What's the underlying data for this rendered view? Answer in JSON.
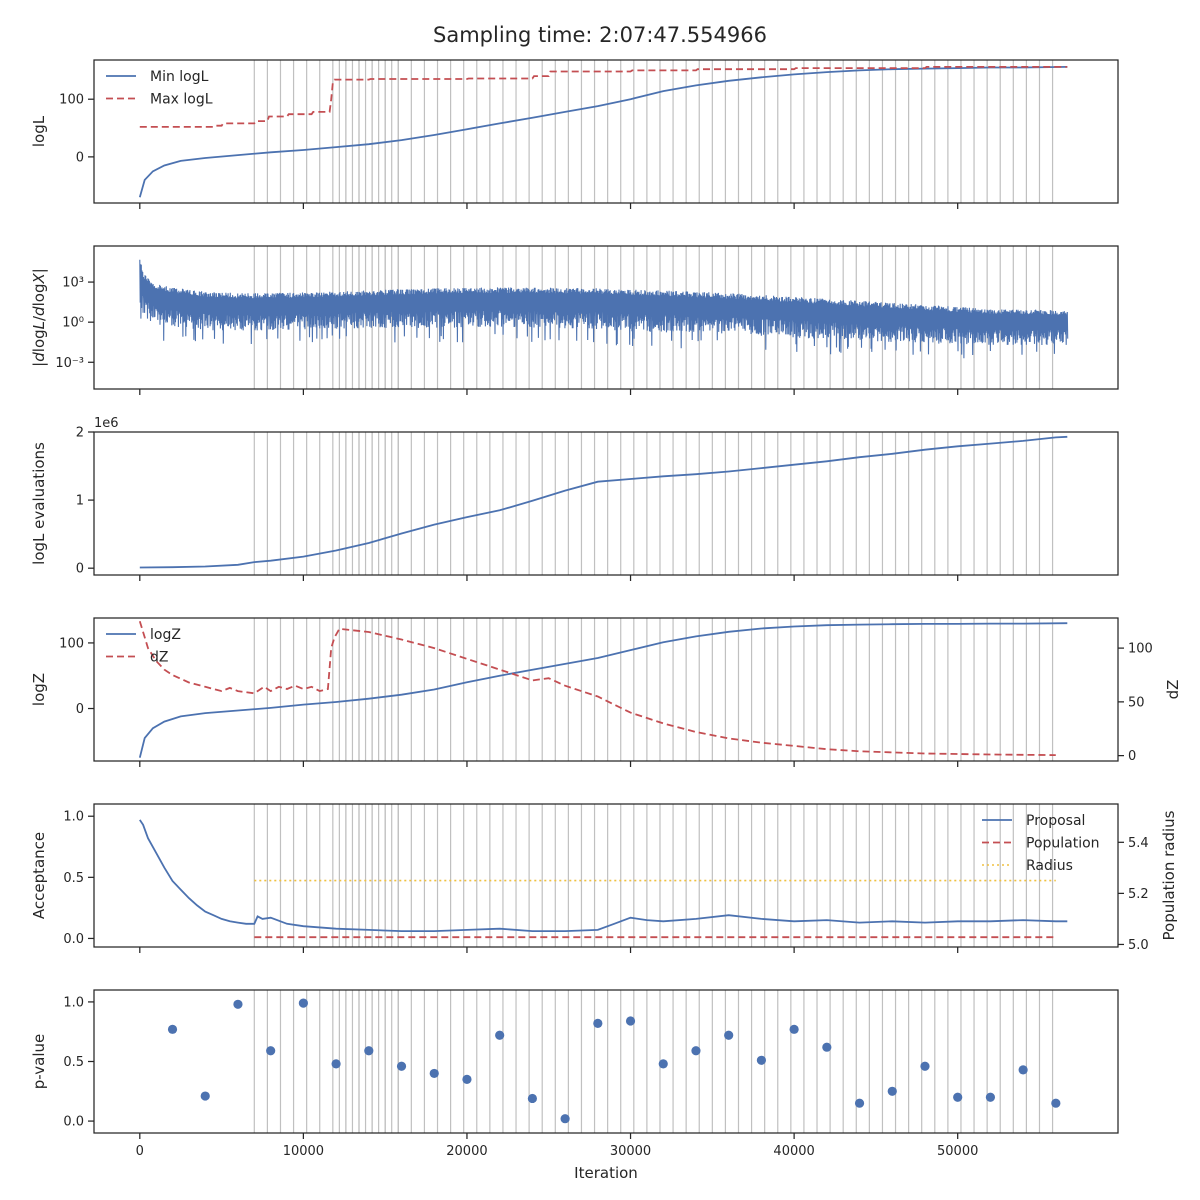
{
  "figure": {
    "title": "Sampling time: 2:07:47.554966"
  },
  "chart_data": [
    {
      "id": "logl",
      "type": "line",
      "ylabel": "logL",
      "xlim": [
        -2800,
        59800
      ],
      "ylim": [
        -80,
        168
      ],
      "yticks": [
        {
          "v": 0,
          "label": "0"
        },
        {
          "v": 100,
          "label": "100"
        }
      ],
      "legend": "top-left",
      "series": [
        {
          "name": "Min logL",
          "color": "#4c72b0",
          "style": "solid",
          "x": [
            0,
            300,
            800,
            1500,
            2500,
            4000,
            6000,
            8000,
            10000,
            12000,
            14000,
            16000,
            18000,
            20000,
            22000,
            24000,
            26000,
            28000,
            30000,
            32000,
            34000,
            36000,
            38000,
            40000,
            42000,
            44000,
            46000,
            48000,
            50000,
            52000,
            54000,
            56700
          ],
          "y": [
            -70,
            -40,
            -25,
            -15,
            -7,
            -2,
            3,
            8,
            12,
            17,
            22,
            29,
            38,
            48,
            58,
            68,
            78,
            88,
            100,
            114,
            124,
            132,
            138,
            143,
            147,
            150,
            152,
            153,
            154,
            155,
            155,
            156
          ]
        },
        {
          "name": "Max logL",
          "color": "#c44e52",
          "style": "dashed",
          "x": [
            0,
            2000,
            2100,
            4500,
            4600,
            5000,
            5100,
            7000,
            7100,
            7800,
            7900,
            9000,
            9100,
            10500,
            10600,
            11600,
            11700,
            11800,
            11900,
            14000,
            14100,
            20000,
            20100,
            24000,
            24100,
            25000,
            25100,
            30000,
            30100,
            34000,
            34100,
            40000,
            40100,
            48000,
            48100,
            56700
          ],
          "y": [
            52,
            52,
            52,
            52,
            54,
            54,
            58,
            58,
            62,
            62,
            70,
            70,
            74,
            74,
            78,
            78,
            100,
            128,
            134,
            134,
            135,
            135,
            136,
            136,
            140,
            140,
            148,
            148,
            150,
            150,
            152,
            152,
            154,
            154,
            156,
            156
          ]
        }
      ]
    },
    {
      "id": "dlogl",
      "type": "line",
      "ylabel": "|dlogL/dlogX|",
      "yscale": "log",
      "xlim": [
        -2800,
        59800
      ],
      "ylim": [
        1e-05,
        500000
      ],
      "yticks": [
        {
          "v": 0.001,
          "label": "10⁻³"
        },
        {
          "v": 1,
          "label": "10⁰"
        },
        {
          "v": 1000,
          "label": "10³"
        }
      ],
      "series": [
        {
          "name": "",
          "color": "#4c72b0",
          "style": "solid",
          "kind": "noisy-envelope",
          "x": [
            0,
            200,
            500,
            1000,
            2000,
            4000,
            6000,
            8000,
            12000,
            16000,
            20000,
            24000,
            28000,
            32000,
            36000,
            40000,
            44000,
            48000,
            52000,
            56700
          ],
          "upper": [
            150000,
            5000,
            2000,
            800,
            400,
            200,
            150,
            150,
            200,
            300,
            400,
            400,
            350,
            250,
            150,
            80,
            40,
            20,
            10,
            8
          ],
          "lower": [
            0.5,
            0.3,
            0.1,
            0.05,
            0.03,
            0.02,
            0.02,
            0.02,
            0.03,
            0.03,
            0.03,
            0.03,
            0.02,
            0.01,
            0.01,
            0.005,
            0.003,
            0.002,
            0.002,
            0.002
          ]
        }
      ]
    },
    {
      "id": "evals",
      "type": "line",
      "ylabel": "logL evaluations",
      "offset_label": "1e6",
      "xlim": [
        -2800,
        59800
      ],
      "ylim": [
        -0.1,
        2.0
      ],
      "yticks": [
        {
          "v": 0,
          "label": "0"
        },
        {
          "v": 1,
          "label": "1"
        },
        {
          "v": 2,
          "label": "2"
        }
      ],
      "series": [
        {
          "name": "",
          "color": "#4c72b0",
          "style": "solid",
          "x": [
            0,
            2000,
            4000,
            6000,
            7000,
            8000,
            10000,
            12000,
            14000,
            16000,
            18000,
            20000,
            22000,
            24000,
            26000,
            28000,
            30000,
            32000,
            34000,
            36000,
            38000,
            40000,
            42000,
            44000,
            46000,
            48000,
            50000,
            52000,
            54000,
            56000,
            56700
          ],
          "y": [
            0.01,
            0.015,
            0.025,
            0.05,
            0.09,
            0.11,
            0.17,
            0.26,
            0.37,
            0.51,
            0.64,
            0.75,
            0.85,
            0.99,
            1.14,
            1.27,
            1.31,
            1.35,
            1.38,
            1.42,
            1.47,
            1.52,
            1.57,
            1.63,
            1.68,
            1.74,
            1.79,
            1.83,
            1.87,
            1.92,
            1.93
          ]
        }
      ]
    },
    {
      "id": "logz",
      "type": "line",
      "ylabel": "logZ",
      "ylabel_right": "dZ",
      "xlim": [
        -2800,
        59800
      ],
      "ylim": [
        -80,
        138
      ],
      "ylim_right": [
        -5,
        128
      ],
      "yticks": [
        {
          "v": 0,
          "label": "0"
        },
        {
          "v": 100,
          "label": "100"
        }
      ],
      "yticks_right": [
        {
          "v": 0,
          "label": "0"
        },
        {
          "v": 50,
          "label": "50"
        },
        {
          "v": 100,
          "label": "100"
        }
      ],
      "legend": "top-left",
      "series": [
        {
          "name": "logZ",
          "color": "#4c72b0",
          "style": "solid",
          "axis": "left",
          "x": [
            0,
            300,
            800,
            1500,
            2500,
            4000,
            6000,
            8000,
            10000,
            12000,
            14000,
            16000,
            18000,
            20000,
            22000,
            24000,
            26000,
            28000,
            30000,
            32000,
            34000,
            36000,
            38000,
            40000,
            42000,
            44000,
            46000,
            48000,
            50000,
            52000,
            54000,
            56700
          ],
          "y": [
            -75,
            -45,
            -30,
            -20,
            -12,
            -7,
            -3,
            1,
            6,
            10,
            15,
            21,
            29,
            40,
            50,
            59,
            68,
            77,
            89,
            101,
            110,
            117,
            122,
            125,
            127,
            128,
            128.5,
            129,
            129,
            129.5,
            129.5,
            130
          ]
        },
        {
          "name": "dZ",
          "color": "#c44e52",
          "style": "dashed",
          "axis": "right",
          "x": [
            0,
            500,
            1000,
            1500,
            2000,
            3000,
            4000,
            5000,
            5500,
            6000,
            7000,
            7600,
            8000,
            8500,
            9000,
            9500,
            10000,
            10500,
            11000,
            11500,
            11700,
            11900,
            12200,
            14000,
            16000,
            18000,
            20000,
            22000,
            24000,
            25000,
            26000,
            28000,
            30000,
            32000,
            34000,
            36000,
            38000,
            40000,
            42000,
            44000,
            46000,
            48000,
            50000,
            52000,
            54000,
            56000
          ],
          "y": [
            125,
            100,
            88,
            80,
            75,
            68,
            64,
            60,
            63,
            60,
            58,
            64,
            60,
            64,
            62,
            65,
            62,
            64,
            60,
            62,
            100,
            110,
            118,
            115,
            108,
            100,
            90,
            80,
            70,
            72,
            65,
            55,
            40,
            30,
            22,
            16,
            12,
            9,
            6,
            4,
            3,
            2,
            1.5,
            1,
            0.8,
            0.5
          ]
        }
      ]
    },
    {
      "id": "accept",
      "type": "line",
      "ylabel": "Acceptance",
      "ylabel_right": "Population radius",
      "xlim": [
        -2800,
        59800
      ],
      "ylim": [
        -0.07,
        1.1
      ],
      "ylim_right": [
        4.99,
        5.55
      ],
      "yticks": [
        {
          "v": 0,
          "label": "0.0"
        },
        {
          "v": 0.5,
          "label": "0.5"
        },
        {
          "v": 1,
          "label": "1.0"
        }
      ],
      "yticks_right": [
        {
          "v": 5.0,
          "label": "5.0"
        },
        {
          "v": 5.2,
          "label": "5.2"
        },
        {
          "v": 5.4,
          "label": "5.4"
        }
      ],
      "legend": "top-right",
      "series": [
        {
          "name": "Proposal",
          "color": "#4c72b0",
          "style": "solid",
          "axis": "left",
          "x": [
            0,
            200,
            500,
            1000,
            1500,
            2000,
            2500,
            3000,
            3500,
            4000,
            4500,
            5000,
            5500,
            6000,
            6500,
            7000,
            7200,
            7500,
            8000,
            9000,
            10000,
            12000,
            14000,
            16000,
            18000,
            20000,
            22000,
            24000,
            26000,
            28000,
            29000,
            30000,
            31000,
            32000,
            34000,
            36000,
            38000,
            40000,
            42000,
            44000,
            46000,
            48000,
            50000,
            52000,
            54000,
            56000,
            56700
          ],
          "y": [
            0.97,
            0.93,
            0.82,
            0.7,
            0.58,
            0.47,
            0.4,
            0.33,
            0.27,
            0.22,
            0.19,
            0.16,
            0.14,
            0.13,
            0.12,
            0.12,
            0.18,
            0.16,
            0.17,
            0.12,
            0.1,
            0.08,
            0.07,
            0.06,
            0.06,
            0.07,
            0.08,
            0.06,
            0.06,
            0.07,
            0.12,
            0.17,
            0.15,
            0.14,
            0.16,
            0.19,
            0.16,
            0.14,
            0.15,
            0.13,
            0.14,
            0.13,
            0.14,
            0.14,
            0.15,
            0.14,
            0.14
          ]
        },
        {
          "name": "Population",
          "color": "#c44e52",
          "style": "dashed",
          "axis": "left",
          "x": [
            7000,
            56000
          ],
          "y": [
            0.01,
            0.01
          ]
        },
        {
          "name": "Radius",
          "color": "#f0c040",
          "style": "dotted",
          "axis": "right",
          "x": [
            7000,
            56000
          ],
          "y": [
            5.25,
            5.25
          ]
        }
      ]
    },
    {
      "id": "pvalue",
      "type": "scatter",
      "ylabel": "p-value",
      "xlabel": "Iteration",
      "xlim": [
        -2800,
        59800
      ],
      "ylim": [
        -0.1,
        1.1
      ],
      "yticks": [
        {
          "v": 0,
          "label": "0.0"
        },
        {
          "v": 0.5,
          "label": "0.5"
        },
        {
          "v": 1,
          "label": "1.0"
        }
      ],
      "xticks": [
        {
          "v": 0,
          "label": "0"
        },
        {
          "v": 10000,
          "label": "10000"
        },
        {
          "v": 20000,
          "label": "20000"
        },
        {
          "v": 30000,
          "label": "30000"
        },
        {
          "v": 40000,
          "label": "40000"
        },
        {
          "v": 50000,
          "label": "50000"
        }
      ],
      "series": [
        {
          "name": "",
          "color": "#4c72b0",
          "x": [
            2000,
            4000,
            6000,
            8000,
            10000,
            12000,
            14000,
            16000,
            18000,
            20000,
            22000,
            24000,
            26000,
            28000,
            30000,
            32000,
            34000,
            36000,
            38000,
            40000,
            42000,
            44000,
            46000,
            48000,
            50000,
            52000,
            54000,
            56000
          ],
          "y": [
            0.77,
            0.21,
            0.98,
            0.59,
            0.99,
            0.48,
            0.59,
            0.46,
            0.4,
            0.35,
            0.72,
            0.19,
            0.02,
            0.82,
            0.84,
            0.48,
            0.59,
            0.72,
            0.51,
            0.77,
            0.62,
            0.15,
            0.25,
            0.46,
            0.2,
            0.2,
            0.43,
            0.15
          ]
        }
      ]
    }
  ],
  "vlines": {
    "color": "#c0c0c0",
    "start": 7000,
    "end": 56200,
    "coarse_step": 800,
    "fine_from": 12000,
    "fine_to": 16000,
    "fine_step": 400
  },
  "colors": {
    "axis": "#262626",
    "background": "#ffffff"
  }
}
